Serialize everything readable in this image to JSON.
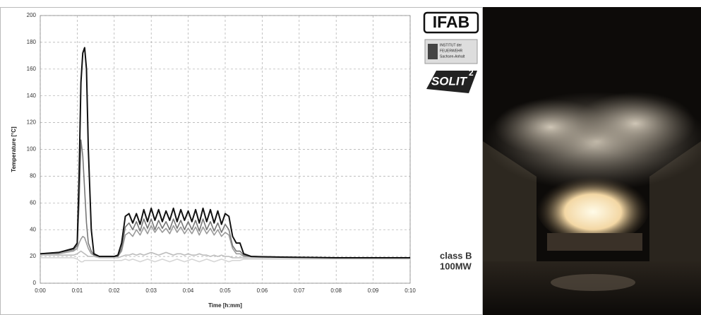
{
  "chart_data": {
    "type": "line",
    "ylabel": "Temperature [°C]",
    "xlabel": "Time [h:mm]",
    "annotation": [
      "class B",
      "100MW"
    ],
    "ylim": [
      0,
      200
    ],
    "yticks": [
      0,
      20,
      40,
      60,
      80,
      100,
      120,
      140,
      160,
      180,
      200
    ],
    "xlim": [
      0,
      10
    ],
    "xticks": [
      {
        "value": 0,
        "label": "0:00"
      },
      {
        "value": 1,
        "label": "0:01"
      },
      {
        "value": 2,
        "label": "0:02"
      },
      {
        "value": 3,
        "label": "0:03"
      },
      {
        "value": 4,
        "label": "0:04"
      },
      {
        "value": 5,
        "label": "0:05"
      },
      {
        "value": 6,
        "label": "0:06"
      },
      {
        "value": 7,
        "label": "0:07"
      },
      {
        "value": 8,
        "label": "0:08"
      },
      {
        "value": 9,
        "label": "0:09"
      },
      {
        "value": 10,
        "label": "0:10"
      }
    ],
    "grid": true,
    "x": [
      0,
      0.5,
      0.9,
      1.0,
      1.05,
      1.1,
      1.15,
      1.2,
      1.25,
      1.3,
      1.38,
      1.45,
      1.6,
      2.0,
      2.1,
      2.2,
      2.3,
      2.4,
      2.5,
      2.6,
      2.7,
      2.8,
      2.9,
      3.0,
      3.1,
      3.2,
      3.3,
      3.4,
      3.5,
      3.6,
      3.7,
      3.8,
      3.9,
      4.0,
      4.1,
      4.2,
      4.3,
      4.4,
      4.5,
      4.6,
      4.7,
      4.8,
      4.9,
      5.0,
      5.1,
      5.2,
      5.3,
      5.4,
      5.5,
      5.7,
      6.5,
      8,
      10
    ],
    "series": [
      {
        "color": "#d6d6d6",
        "values": [
          19,
          19,
          19,
          18,
          17,
          16,
          16,
          17,
          17,
          17,
          17,
          17,
          17,
          17,
          17,
          17,
          18,
          17,
          18,
          17,
          16,
          17,
          18,
          17,
          16,
          17,
          18,
          17,
          16,
          17,
          18,
          17,
          16,
          17,
          18,
          17,
          16,
          17,
          18,
          17,
          16,
          17,
          18,
          17,
          16,
          17,
          17,
          17,
          18,
          18,
          18,
          18,
          18
        ]
      },
      {
        "color": "#bdbdbd",
        "values": [
          21,
          21,
          21,
          22,
          23,
          24,
          23,
          22,
          21,
          20,
          20,
          20,
          19,
          19,
          19,
          20,
          21,
          21,
          22,
          21,
          22,
          21,
          22,
          23,
          22,
          21,
          22,
          23,
          22,
          21,
          22,
          22,
          21,
          22,
          21,
          21,
          22,
          21,
          21,
          20,
          21,
          20,
          21,
          20,
          20,
          19,
          19,
          19,
          19,
          19,
          19,
          19,
          19
        ]
      },
      {
        "color": "#9a9a9a",
        "values": [
          22,
          22,
          24,
          26,
          30,
          33,
          35,
          34,
          30,
          26,
          22,
          21,
          20,
          20,
          20,
          24,
          36,
          38,
          35,
          40,
          36,
          42,
          37,
          43,
          38,
          42,
          38,
          41,
          37,
          43,
          38,
          42,
          37,
          41,
          37,
          42,
          36,
          42,
          37,
          41,
          36,
          40,
          35,
          38,
          36,
          26,
          22,
          22,
          20,
          20,
          19.5,
          19,
          19
        ]
      },
      {
        "color": "#777777",
        "values": [
          22,
          23,
          25,
          28,
          60,
          107,
          95,
          70,
          45,
          30,
          24,
          21,
          20,
          20,
          20,
          26,
          42,
          45,
          40,
          46,
          39,
          48,
          41,
          48,
          40,
          47,
          41,
          46,
          40,
          48,
          41,
          47,
          40,
          46,
          40,
          47,
          39,
          48,
          40,
          46,
          39,
          45,
          38,
          44,
          40,
          28,
          24,
          24,
          21,
          20,
          19.5,
          19,
          19
        ]
      },
      {
        "color": "#111111",
        "values": [
          22,
          23,
          26,
          30,
          80,
          150,
          172,
          176,
          160,
          100,
          40,
          22,
          20,
          20,
          21,
          30,
          50,
          52,
          45,
          52,
          44,
          55,
          46,
          56,
          47,
          55,
          46,
          54,
          47,
          56,
          46,
          55,
          47,
          54,
          46,
          55,
          45,
          56,
          46,
          55,
          45,
          54,
          44,
          52,
          50,
          35,
          30,
          30,
          22,
          20,
          19.5,
          19,
          19
        ]
      }
    ]
  },
  "logos": {
    "ifab": "IFAB",
    "institute": [
      "INSTITUT der",
      "FEUERWEHR",
      "Sachsen-Anhalt"
    ],
    "solit": "SOLIT",
    "solit_sup": "2"
  }
}
